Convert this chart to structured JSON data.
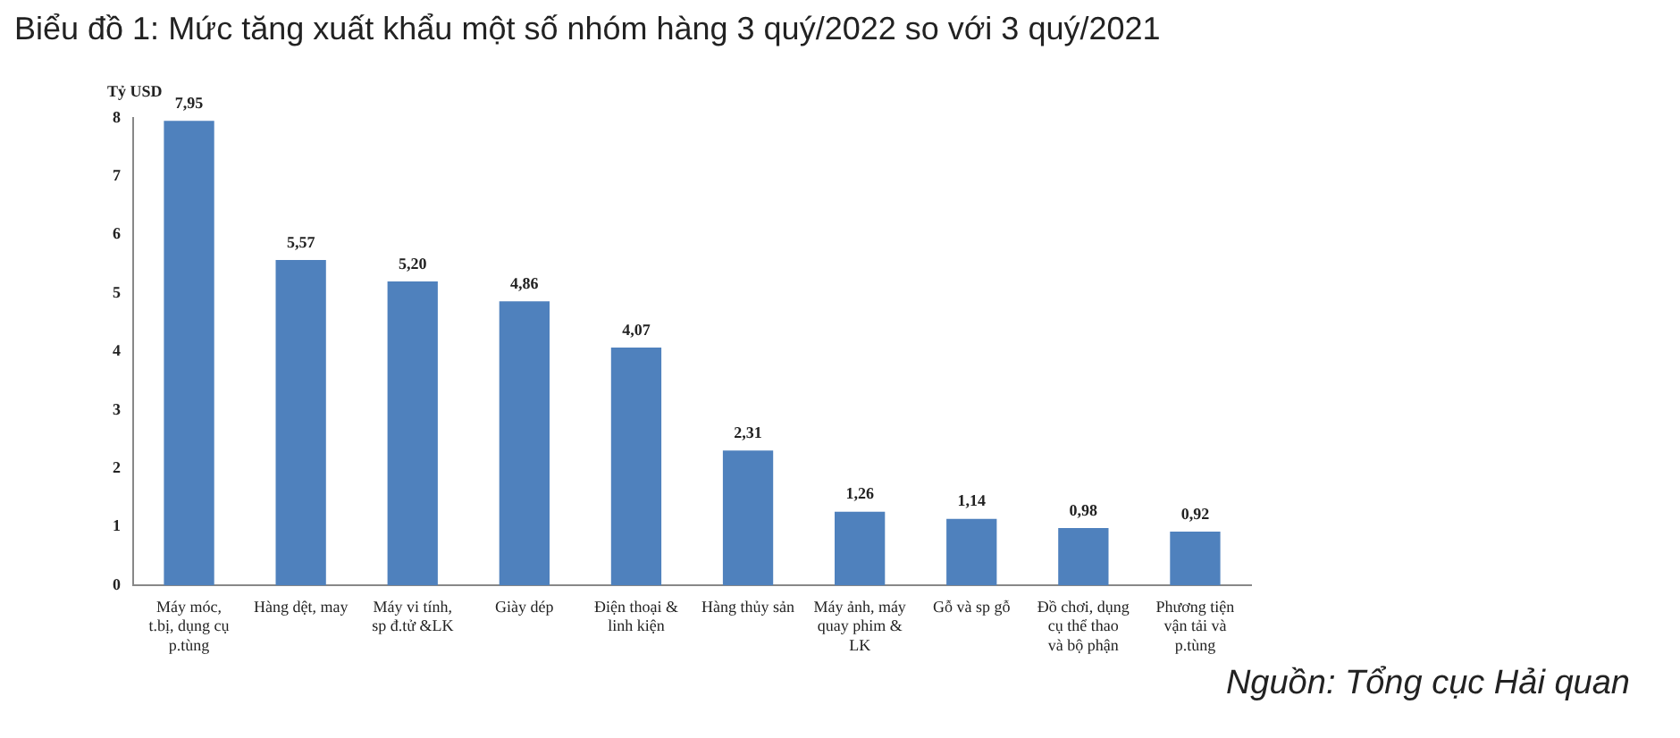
{
  "chart_data": {
    "type": "bar",
    "title": "Biểu đồ 1: Mức tăng xuất khẩu một số nhóm hàng 3 quý/2022 so với 3 quý/2021",
    "ylabel": "Tỷ USD",
    "categories": [
      "Máy móc, t.bị, dụng cụ p.tùng",
      "Hàng dệt, may",
      "Máy vi tính, sp đ.tử &LK",
      "Giày dép",
      "Điện thoại & linh kiện",
      "Hàng thủy sản",
      "Máy ảnh, máy quay phim & LK",
      "Gỗ và sp gỗ",
      "Đồ chơi, dụng cụ thể thao và bộ phận",
      "Phương tiện vận tải và p.tùng"
    ],
    "values": [
      7.95,
      5.57,
      5.2,
      4.86,
      4.07,
      2.31,
      1.26,
      1.14,
      0.98,
      0.92
    ],
    "value_labels": [
      "7,95",
      "5,57",
      "5,20",
      "4,86",
      "4,07",
      "2,31",
      "1,26",
      "1,14",
      "0,98",
      "0,92"
    ],
    "color": "#4f81bd",
    "ylim": [
      0,
      8
    ],
    "yticks": [
      0,
      1,
      2,
      3,
      4,
      5,
      6,
      7,
      8
    ],
    "grid": false,
    "legend": false,
    "annotations": [
      "Nguồn: Tổng cục Hải quan"
    ]
  }
}
